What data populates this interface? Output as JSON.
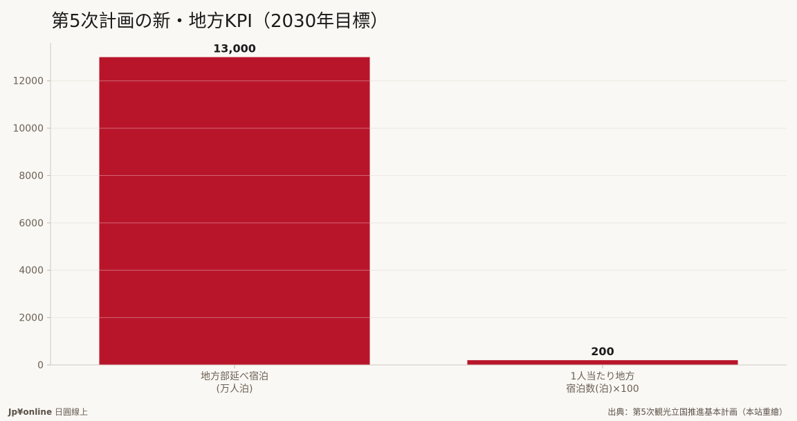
{
  "chart_data": {
    "type": "bar",
    "title": "第5次計画の新・地方KPI（2030年目標）",
    "categories": [
      [
        "地方部延べ宿泊",
        "(万人泊)"
      ],
      [
        "1人当たり地方",
        "宿泊数(泊)×100"
      ]
    ],
    "values": [
      13000,
      200
    ],
    "value_labels": [
      "13,000",
      "200"
    ],
    "ylim": [
      0,
      13600
    ],
    "yticks": [
      0,
      2000,
      4000,
      6000,
      8000,
      10000,
      12000
    ],
    "xlabel": "",
    "ylabel": "",
    "grid": "y",
    "bar_color": "#b8152b"
  },
  "footer": {
    "brand": "Jp¥online",
    "tagline": "日圓線上",
    "source": "出典：第5次観光立国推進基本計画（本站重繪）"
  }
}
